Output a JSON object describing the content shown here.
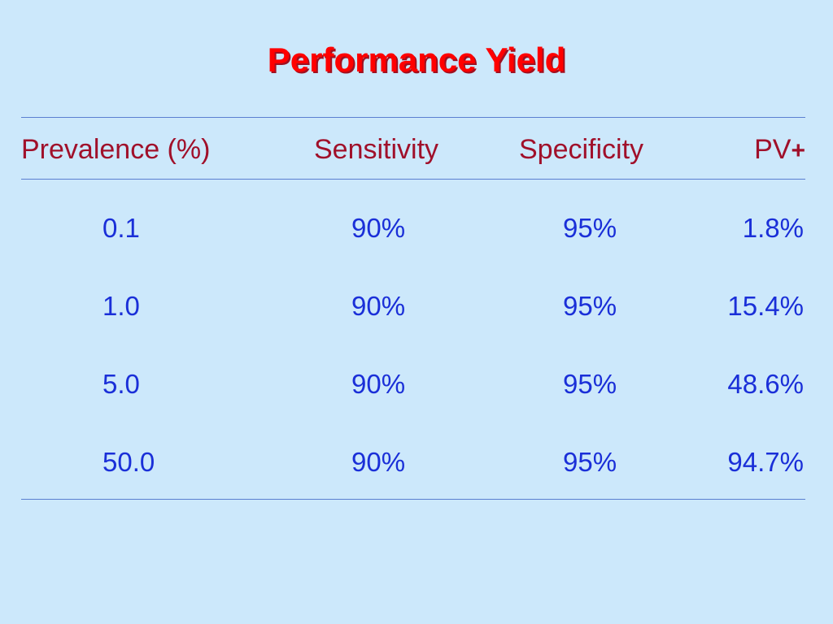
{
  "slide": {
    "title": "Performance Yield",
    "title_color": "#ff0000",
    "header_color": "#a0102a",
    "value_color": "#1a2fd8",
    "background_color": "#cce8fb"
  },
  "table": {
    "headers": {
      "prevalence": "Prevalence (%)",
      "sensitivity": "Sensitivity",
      "specificity": "Specificity",
      "pv_prefix": "PV",
      "pv_suffix": "+"
    },
    "rows": [
      {
        "prevalence": "0.1",
        "sensitivity": "90%",
        "specificity": "95%",
        "pv_plus": "1.8%"
      },
      {
        "prevalence": "1.0",
        "sensitivity": "90%",
        "specificity": "95%",
        "pv_plus": "15.4%"
      },
      {
        "prevalence": "5.0",
        "sensitivity": "90%",
        "specificity": "95%",
        "pv_plus": "48.6%"
      },
      {
        "prevalence": "50.0",
        "sensitivity": "90%",
        "specificity": "95%",
        "pv_plus": "94.7%"
      }
    ]
  }
}
